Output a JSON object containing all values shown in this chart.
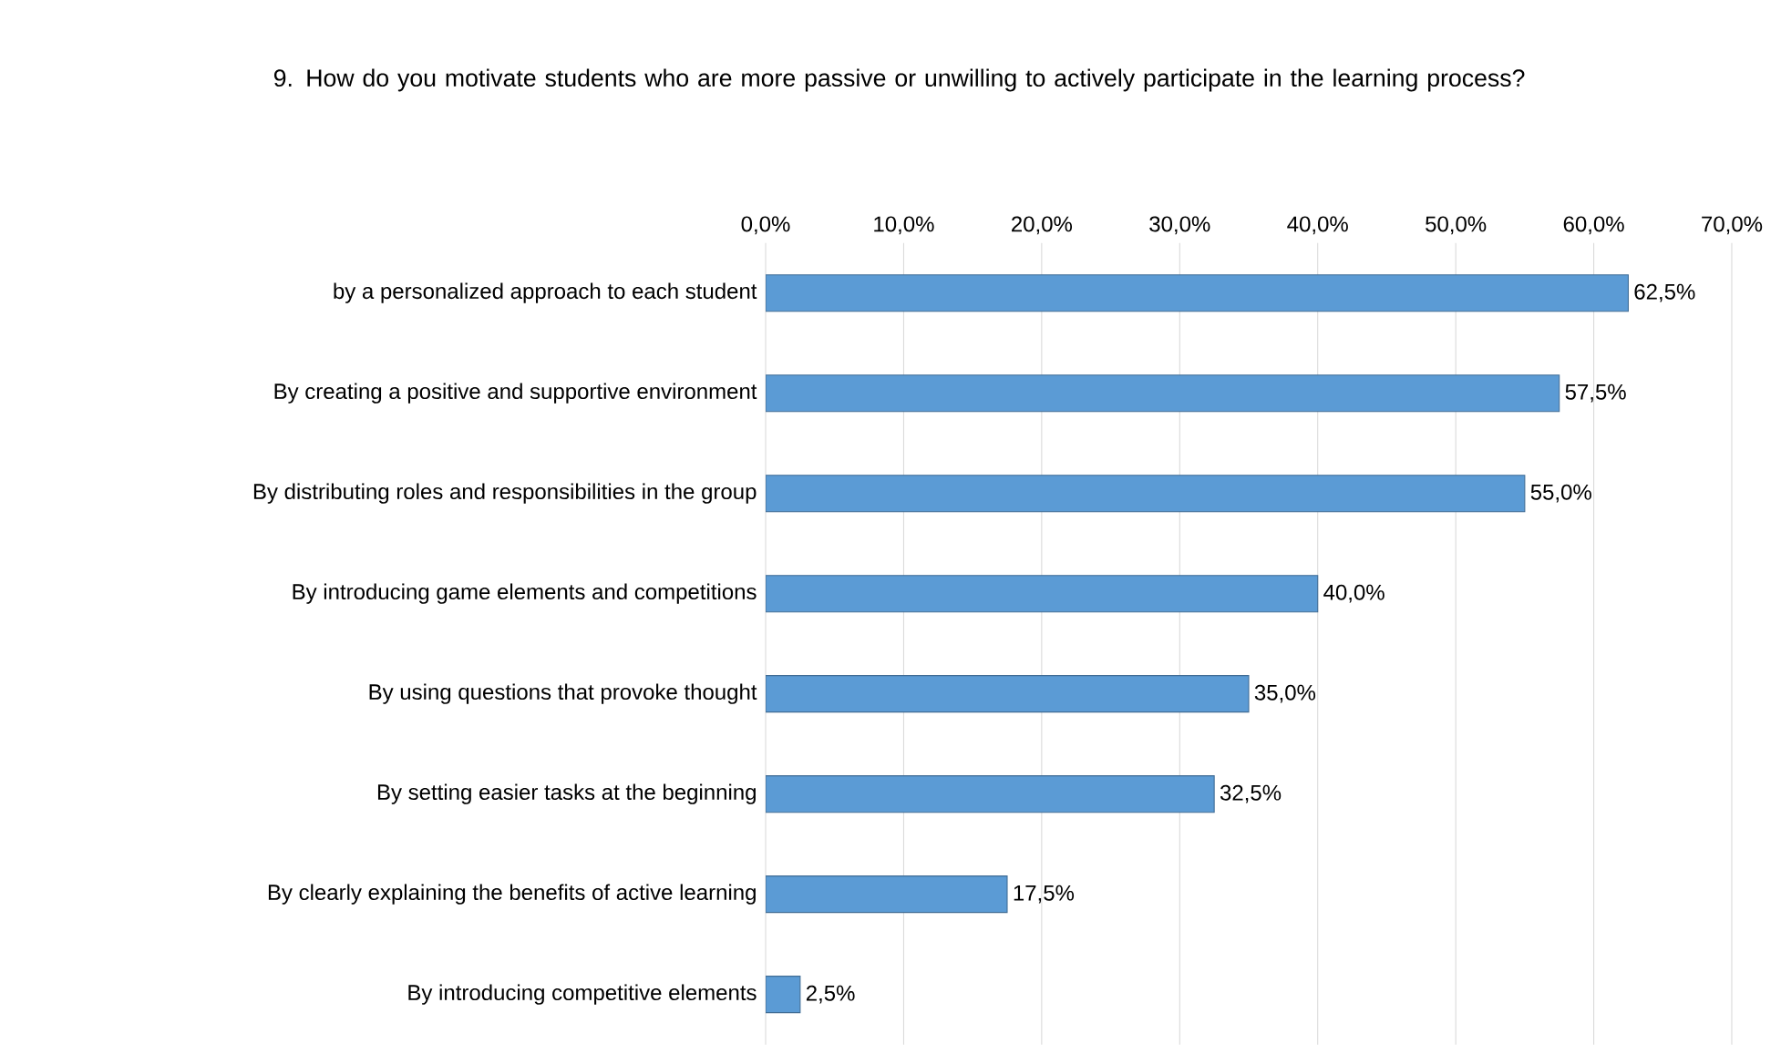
{
  "chart_data": {
    "type": "bar",
    "orientation": "horizontal",
    "title": "9. How do you motivate students who are more passive or unwilling to actively participate in the learning process?",
    "categories": [
      "by a personalized approach to each student",
      "By creating a positive and supportive environment",
      "By distributing roles and responsibilities in the group",
      "By introducing game elements and competitions",
      "By using questions that provoke thought",
      "By setting easier tasks at the beginning",
      "By clearly explaining the benefits of active learning",
      "By introducing competitive elements"
    ],
    "values": [
      62.5,
      57.5,
      55.0,
      40.0,
      35.0,
      32.5,
      17.5,
      2.5
    ],
    "value_labels": [
      "62,5%",
      "57,5%",
      "55,0%",
      "40,0%",
      "35,0%",
      "32,5%",
      "17,5%",
      "2,5%"
    ],
    "color": "#5b9bd5",
    "xlim": [
      0,
      70
    ],
    "xticks": [
      {
        "value": 0,
        "label": "0,0%"
      },
      {
        "value": 10,
        "label": "10,0%"
      },
      {
        "value": 20,
        "label": "20,0%"
      },
      {
        "value": 30,
        "label": "30,0%"
      },
      {
        "value": 40,
        "label": "40,0%"
      },
      {
        "value": 50,
        "label": "50,0%"
      },
      {
        "value": 60,
        "label": "60,0%"
      },
      {
        "value": 70,
        "label": "70,0%"
      }
    ],
    "grid": true
  }
}
